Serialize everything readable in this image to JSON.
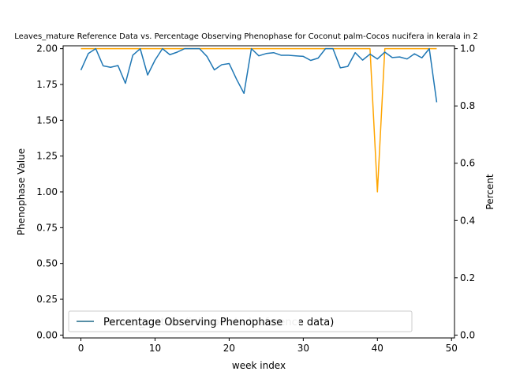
{
  "chart_data": {
    "type": "line",
    "title": "Leaves_mature Reference Data vs. Percentage Observing Phenophase for Coconut palm-Cocos nucifera in kerala in 2",
    "xlabel": "week index",
    "ylabel_left": "Phenophase Value",
    "ylabel_right": "Percent",
    "xlim": [
      -2.4,
      50.4
    ],
    "ylim_left": [
      -0.02,
      2.02
    ],
    "ylim_right": [
      -0.01,
      1.01
    ],
    "x_ticks": [
      0,
      10,
      20,
      30,
      40,
      50
    ],
    "y_ticks_left": [
      "0.00",
      "0.25",
      "0.50",
      "0.75",
      "1.00",
      "1.25",
      "1.50",
      "1.75",
      "2.00"
    ],
    "y_ticks_right": [
      "0.0",
      "0.2",
      "0.4",
      "0.6",
      "0.8",
      "1.0"
    ],
    "series": [
      {
        "name": "(interpolated reference data)",
        "axis": "left",
        "color": "#ffa500",
        "x": [
          0,
          1,
          2,
          3,
          4,
          5,
          6,
          7,
          8,
          9,
          10,
          11,
          12,
          13,
          14,
          15,
          16,
          17,
          18,
          19,
          20,
          21,
          22,
          23,
          24,
          25,
          26,
          27,
          28,
          29,
          30,
          31,
          32,
          33,
          34,
          35,
          36,
          37,
          38,
          39,
          40,
          41,
          42,
          43,
          44,
          45,
          46,
          47,
          48
        ],
        "values": [
          2,
          2,
          2,
          2,
          2,
          2,
          2,
          2,
          2,
          2,
          2,
          2,
          2,
          2,
          2,
          2,
          2,
          2,
          2,
          2,
          2,
          2,
          2,
          2,
          2,
          2,
          2,
          2,
          2,
          2,
          2,
          2,
          2,
          2,
          2,
          2,
          2,
          2,
          2,
          2,
          1,
          2,
          2,
          2,
          2,
          2,
          2,
          2,
          2
        ]
      },
      {
        "name": "Percentage Observing Phenophase",
        "axis": "right",
        "color": "#1f77b4",
        "x": [
          0,
          1,
          2,
          3,
          4,
          5,
          6,
          7,
          8,
          9,
          10,
          11,
          12,
          13,
          14,
          15,
          16,
          17,
          18,
          19,
          20,
          21,
          22,
          23,
          24,
          25,
          26,
          27,
          28,
          29,
          30,
          31,
          32,
          33,
          34,
          35,
          36,
          37,
          38,
          39,
          40,
          41,
          42,
          43,
          44,
          45,
          46,
          47,
          48
        ],
        "values": [
          0.925,
          0.983,
          1.0,
          0.94,
          0.935,
          0.941,
          0.879,
          0.977,
          1.0,
          0.908,
          0.96,
          1.0,
          0.979,
          0.988,
          1.0,
          1.0,
          1.0,
          0.973,
          0.926,
          0.944,
          0.948,
          0.893,
          0.844,
          1.0,
          0.975,
          0.983,
          0.986,
          0.977,
          0.977,
          0.975,
          0.973,
          0.959,
          0.967,
          1.0,
          1.0,
          0.933,
          0.938,
          0.986,
          0.96,
          0.981,
          0.964,
          0.988,
          0.969,
          0.971,
          0.964,
          0.982,
          0.968,
          1.0,
          0.813
        ]
      }
    ],
    "legend": {
      "position": "lower-left",
      "entries": [
        "Percentage Observing Phenophase",
        "Leaves_mature (interpolated reference data)"
      ]
    },
    "grid": false
  }
}
